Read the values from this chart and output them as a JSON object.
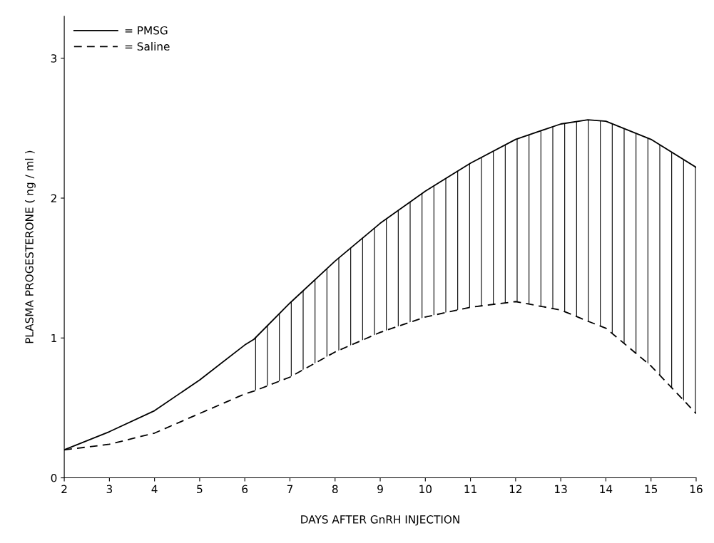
{
  "chart_data": {
    "type": "line",
    "xlabel": "DAYS AFTER GnRH INJECTION",
    "ylabel": "PLASMA PROGESTERONE ( ng / ml )",
    "x": [
      2,
      3,
      4,
      5,
      6,
      6.2,
      7,
      8,
      9,
      10,
      11,
      12,
      13,
      13.6,
      14,
      15,
      16
    ],
    "series": [
      {
        "name": "= PMSG",
        "color": "#000000",
        "line_style": "solid",
        "values": [
          0.2,
          0.33,
          0.48,
          0.7,
          0.95,
          0.99,
          1.25,
          1.55,
          1.82,
          2.05,
          2.25,
          2.42,
          2.53,
          2.56,
          2.55,
          2.42,
          2.22
        ],
        "lower": [
          null,
          null,
          null,
          null,
          null,
          0.62,
          0.72,
          0.9,
          1.04,
          1.15,
          1.22,
          1.26,
          1.2,
          1.12,
          1.07,
          0.8,
          0.46
        ],
        "upper": [
          null,
          null,
          null,
          null,
          null,
          0.99,
          1.25,
          1.55,
          1.82,
          2.05,
          2.25,
          2.42,
          2.53,
          2.56,
          2.55,
          2.42,
          2.22
        ]
      },
      {
        "name": "= Saline",
        "color": "#000000",
        "line_style": "dashed",
        "values": [
          0.2,
          0.24,
          0.32,
          0.46,
          0.6,
          0.62,
          0.72,
          0.9,
          1.04,
          1.15,
          1.22,
          1.26,
          1.2,
          1.12,
          1.07,
          0.8,
          0.46
        ]
      }
    ],
    "xlim": [
      2,
      16
    ],
    "ylim": [
      0,
      3.3
    ],
    "xticks": [
      2,
      3,
      4,
      5,
      6,
      7,
      8,
      9,
      10,
      11,
      12,
      13,
      14,
      15,
      16
    ],
    "yticks": [
      0,
      1,
      2,
      3
    ],
    "grid": false,
    "legend": "top left",
    "marker": "none"
  }
}
